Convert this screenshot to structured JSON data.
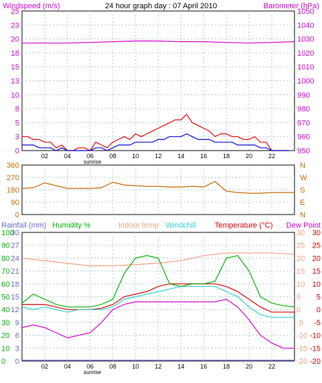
{
  "chart_data": [
    {
      "type": "line",
      "title": "24 hour graph day : 07 April 2010",
      "left_axis_label": "Windspeed (m/s)",
      "right_axis_label": "Barometer (hPa)",
      "left_ticks": [
        "25",
        "23",
        "20",
        "18",
        "15",
        "13",
        "10",
        "8",
        "5",
        "3",
        "0"
      ],
      "right_ticks": [
        "1050",
        "1040",
        "1030",
        "1020",
        "1010",
        "1000",
        "990",
        "980",
        "970",
        "960",
        "950"
      ],
      "left_ylim": [
        0,
        25
      ],
      "right_ylim": [
        950,
        1050
      ],
      "x_ticks": [
        "02",
        "04",
        "06",
        "08",
        "10",
        "12",
        "14",
        "16",
        "18",
        "20",
        "22"
      ],
      "x_annotation": "sunrise",
      "colors": {
        "gust": "#e00000",
        "wind": "#0000cc",
        "barometer": "#cc00cc",
        "grid": "#a8c8c8"
      },
      "series": [
        {
          "key": "gust",
          "x": [
            0,
            0.5,
            1,
            1.5,
            2,
            2.5,
            3,
            3.5,
            4,
            4.5,
            5,
            5.5,
            6,
            6.5,
            7,
            7.5,
            8,
            8.5,
            9,
            9.5,
            10,
            10.5,
            11,
            11.5,
            12,
            12.5,
            13,
            13.5,
            14,
            14.5,
            15,
            15.5,
            16,
            16.5,
            17,
            17.5,
            18,
            18.5,
            19,
            19.5,
            20,
            20.5,
            21,
            21.5,
            22,
            22.5,
            23,
            23.5
          ],
          "values": [
            2.5,
            2.5,
            2,
            2,
            1.5,
            1.5,
            0.5,
            1,
            0,
            0,
            0.5,
            0.5,
            0,
            1.5,
            1,
            0.5,
            1.5,
            2,
            2.5,
            2,
            3,
            2.5,
            3,
            3.5,
            4,
            4.5,
            5,
            5.5,
            5.5,
            6.5,
            5,
            4.5,
            4,
            3.5,
            2.5,
            3,
            3,
            2.5,
            2.5,
            2,
            2,
            2.5,
            1.5,
            1.5,
            0,
            0,
            0,
            0
          ]
        },
        {
          "key": "wind",
          "x": [
            0,
            0.5,
            1,
            1.5,
            2,
            2.5,
            3,
            3.5,
            4,
            4.5,
            5,
            5.5,
            6,
            6.5,
            7,
            7.5,
            8,
            8.5,
            9,
            9.5,
            10,
            10.5,
            11,
            11.5,
            12,
            12.5,
            13,
            13.5,
            14,
            14.5,
            15,
            15.5,
            16,
            16.5,
            17,
            17.5,
            18,
            18.5,
            19,
            19.5,
            20,
            20.5,
            21,
            21.5,
            22,
            22.5,
            23,
            23.5
          ],
          "values": [
            1,
            1,
            1,
            0.5,
            0.5,
            0.5,
            0,
            0.5,
            0,
            0,
            0,
            0,
            0,
            0.5,
            0.5,
            0,
            0.5,
            1,
            1,
            1,
            1.5,
            1.5,
            1.5,
            1.5,
            2,
            2,
            2.5,
            2.5,
            2.5,
            3,
            2.5,
            2,
            2,
            2,
            1.5,
            1.5,
            1.5,
            1.5,
            1,
            1,
            1,
            1,
            0.5,
            0.5,
            0,
            0,
            0,
            0
          ]
        },
        {
          "key": "barometer",
          "axis": "right",
          "x": [
            0,
            2,
            4,
            6,
            8,
            10,
            12,
            14,
            16,
            18,
            20,
            22,
            24
          ],
          "values": [
            1027,
            1027,
            1027,
            1027.5,
            1028,
            1028.5,
            1028.5,
            1028,
            1028,
            1027.5,
            1027,
            1027.5,
            1028
          ]
        }
      ]
    },
    {
      "type": "line",
      "left_ticks": [
        "360",
        "270",
        "180",
        "90",
        "0"
      ],
      "right_labels": [
        "N",
        "W",
        "S",
        "E",
        "N"
      ],
      "ylim": [
        0,
        360
      ],
      "colors": {
        "direction": "#bf6a00",
        "grid": "#a8c8c8"
      },
      "series": [
        {
          "key": "direction",
          "x": [
            0,
            1,
            2,
            3,
            4,
            5,
            6,
            7,
            8,
            9,
            10,
            11,
            12,
            13,
            14,
            15,
            16,
            17,
            18,
            19,
            20,
            21,
            22,
            23,
            24
          ],
          "values": [
            190,
            195,
            230,
            210,
            190,
            190,
            190,
            195,
            235,
            215,
            210,
            205,
            205,
            200,
            200,
            205,
            200,
            240,
            170,
            160,
            155,
            155,
            160,
            160,
            160
          ]
        }
      ]
    },
    {
      "type": "line",
      "legend": [
        "Rainfall (mm)",
        "Humidity %",
        "Indoor temp",
        "Windchill",
        "Temperature (°C)",
        "Dew Point"
      ],
      "rain_ticks": [
        "30",
        "27",
        "24",
        "21",
        "18",
        "15",
        "12",
        "9",
        "6",
        "3",
        "0"
      ],
      "humidity_ticks": [
        "100",
        "90",
        "80",
        "70",
        "60",
        "50",
        "40",
        "30",
        "20",
        "10",
        "0"
      ],
      "temp_ticks_outer": [
        "30",
        "25",
        "20",
        "15",
        "10",
        "5",
        "0",
        "-5",
        "-10",
        "-15",
        "-20"
      ],
      "temp_ticks_inner": [
        "30",
        "25",
        "20",
        "15",
        "10",
        "5",
        "0",
        "-5",
        "-10",
        "-15",
        "-20"
      ],
      "temp_ylim": [
        -20,
        30
      ],
      "x_ticks": [
        "02",
        "04",
        "06",
        "08",
        "10",
        "12",
        "14",
        "16",
        "18",
        "20",
        "22"
      ],
      "x_annotation": "sunrise",
      "colors": {
        "rain": "#6666cc",
        "humidity": "#00b000",
        "indoor": "#f0a080",
        "windchill": "#33cccc",
        "temperature": "#cc0000",
        "dewpoint": "#cc00cc",
        "grid": "#a8c8c8"
      },
      "series": [
        {
          "key": "indoor",
          "x": [
            0,
            2,
            4,
            6,
            8,
            10,
            12,
            14,
            16,
            18,
            20,
            22,
            24
          ],
          "values": [
            20,
            19,
            18,
            17,
            17,
            17.5,
            18,
            19,
            21,
            22,
            22,
            22,
            21.5
          ]
        },
        {
          "key": "temperature",
          "x": [
            0,
            1,
            2,
            3,
            4,
            5,
            6,
            7,
            8,
            9,
            10,
            11,
            12,
            13,
            14,
            15,
            16,
            17,
            18,
            19,
            20,
            21,
            22,
            23,
            24
          ],
          "values": [
            2,
            2,
            2,
            1,
            0,
            0,
            0,
            0.5,
            2,
            5,
            6,
            7,
            9,
            10,
            10,
            10,
            10,
            10,
            9,
            7,
            4,
            1,
            -1,
            -1,
            -1
          ]
        },
        {
          "key": "windchill",
          "x": [
            0,
            1,
            2,
            3,
            4,
            5,
            6,
            7,
            8,
            9,
            10,
            11,
            12,
            13,
            14,
            15,
            16,
            17,
            18,
            19,
            20,
            21,
            22,
            23,
            24
          ],
          "values": [
            1,
            0,
            1,
            0,
            -1,
            0,
            0,
            0,
            1,
            4,
            5,
            6,
            7,
            8,
            9,
            9,
            9,
            9,
            7,
            5,
            1,
            -2,
            -3,
            -3,
            -3
          ]
        },
        {
          "key": "humidity",
          "x": [
            0,
            1,
            2,
            3,
            4,
            5,
            6,
            7,
            8,
            9,
            10,
            11,
            12,
            13,
            14,
            15,
            16,
            17,
            18,
            19,
            20,
            21,
            22,
            23,
            24
          ],
          "values": [
            45,
            52,
            48,
            44,
            42,
            42,
            42,
            44,
            48,
            68,
            80,
            82,
            80,
            60,
            58,
            60,
            60,
            62,
            80,
            82,
            70,
            50,
            45,
            43,
            42
          ]
        },
        {
          "key": "dewpoint",
          "x": [
            0,
            1,
            2,
            3,
            4,
            5,
            6,
            7,
            8,
            9,
            10,
            11,
            12,
            13,
            14,
            15,
            16,
            17,
            18,
            19,
            20,
            21,
            22,
            23,
            24
          ],
          "values": [
            -7,
            -6,
            -7,
            -9,
            -11,
            -10,
            -9,
            -5,
            0,
            2,
            3,
            3,
            3,
            3,
            3,
            3,
            3,
            3,
            4,
            1,
            -4,
            -10,
            -13,
            -15,
            -15
          ]
        },
        {
          "key": "rain",
          "x": [
            0,
            24
          ],
          "values": [
            0,
            0
          ]
        }
      ]
    }
  ]
}
